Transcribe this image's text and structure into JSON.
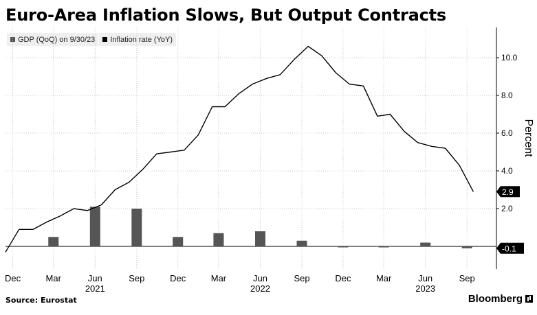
{
  "header": {
    "title": "Euro-Area Inflation Slows, But Output Contracts"
  },
  "legend": {
    "gdp_label": "GDP (QoQ) on 9/30/23",
    "inflation_label": "Inflation rate (YoY)"
  },
  "footer": {
    "source": "Source: Eurostat",
    "brand": "Bloomberg"
  },
  "colors": {
    "gdp": "#555555",
    "inflation": "#000000",
    "grid": "#c8c8c8",
    "legend_bg": "#efefef"
  },
  "chart_data": {
    "type": "bar+line",
    "ylabel": "Percent",
    "ylim": [
      -1.2,
      11.6
    ],
    "y_ticks": [
      {
        "value": 2,
        "label": "2.0"
      },
      {
        "value": 4,
        "label": "4.0"
      },
      {
        "value": 6,
        "label": "6.0"
      },
      {
        "value": 8,
        "label": "8.0"
      },
      {
        "value": 10,
        "label": "10.0"
      }
    ],
    "xlim": [
      "2020-11-15",
      "2023-11-05"
    ],
    "x_ticks": [
      {
        "date": "2020-12-01",
        "label": "Dec"
      },
      {
        "date": "2021-03-01",
        "label": "Mar"
      },
      {
        "date": "2021-06-01",
        "label": "Jun"
      },
      {
        "date": "2021-09-01",
        "label": "Sep"
      },
      {
        "date": "2021-12-01",
        "label": "Dec"
      },
      {
        "date": "2022-03-01",
        "label": "Mar"
      },
      {
        "date": "2022-06-01",
        "label": "Jun"
      },
      {
        "date": "2022-09-01",
        "label": "Sep"
      },
      {
        "date": "2022-12-01",
        "label": "Dec"
      },
      {
        "date": "2023-03-01",
        "label": "Mar"
      },
      {
        "date": "2023-06-01",
        "label": "Jun"
      },
      {
        "date": "2023-09-01",
        "label": "Sep"
      }
    ],
    "year_labels": [
      {
        "date": "2021-06-01",
        "label": "2021"
      },
      {
        "date": "2022-06-01",
        "label": "2022"
      },
      {
        "date": "2023-06-01",
        "label": "2023"
      }
    ],
    "series": [
      {
        "name": "GDP (QoQ) on 9/30/23",
        "kind": "bar",
        "points": [
          {
            "x": "2021-03-01",
            "y": 0.5
          },
          {
            "x": "2021-06-01",
            "y": 2.1
          },
          {
            "x": "2021-09-01",
            "y": 2.0
          },
          {
            "x": "2021-12-01",
            "y": 0.5
          },
          {
            "x": "2022-03-01",
            "y": 0.7
          },
          {
            "x": "2022-06-01",
            "y": 0.8
          },
          {
            "x": "2022-09-01",
            "y": 0.3
          },
          {
            "x": "2022-12-01",
            "y": -0.05
          },
          {
            "x": "2023-03-01",
            "y": -0.05
          },
          {
            "x": "2023-06-01",
            "y": 0.2
          },
          {
            "x": "2023-09-01",
            "y": -0.1
          }
        ]
      },
      {
        "name": "Inflation rate (YoY)",
        "kind": "line",
        "points": [
          {
            "x": "2020-11-15",
            "y": -0.3
          },
          {
            "x": "2020-12-15",
            "y": 0.9
          },
          {
            "x": "2021-01-15",
            "y": 0.9
          },
          {
            "x": "2021-02-15",
            "y": 1.3
          },
          {
            "x": "2021-03-15",
            "y": 1.6
          },
          {
            "x": "2021-04-15",
            "y": 2.0
          },
          {
            "x": "2021-05-15",
            "y": 1.9
          },
          {
            "x": "2021-06-15",
            "y": 2.2
          },
          {
            "x": "2021-07-15",
            "y": 3.0
          },
          {
            "x": "2021-08-15",
            "y": 3.4
          },
          {
            "x": "2021-09-15",
            "y": 4.1
          },
          {
            "x": "2021-10-15",
            "y": 4.9
          },
          {
            "x": "2021-11-15",
            "y": 5.0
          },
          {
            "x": "2021-12-15",
            "y": 5.1
          },
          {
            "x": "2022-01-15",
            "y": 5.9
          },
          {
            "x": "2022-02-15",
            "y": 7.4
          },
          {
            "x": "2022-03-15",
            "y": 7.4
          },
          {
            "x": "2022-04-15",
            "y": 8.1
          },
          {
            "x": "2022-05-15",
            "y": 8.6
          },
          {
            "x": "2022-06-15",
            "y": 8.9
          },
          {
            "x": "2022-07-15",
            "y": 9.1
          },
          {
            "x": "2022-08-15",
            "y": 9.9
          },
          {
            "x": "2022-09-15",
            "y": 10.6
          },
          {
            "x": "2022-10-15",
            "y": 10.1
          },
          {
            "x": "2022-11-15",
            "y": 9.2
          },
          {
            "x": "2022-12-15",
            "y": 8.6
          },
          {
            "x": "2023-01-15",
            "y": 8.5
          },
          {
            "x": "2023-02-15",
            "y": 6.9
          },
          {
            "x": "2023-03-15",
            "y": 7.0
          },
          {
            "x": "2023-04-15",
            "y": 6.1
          },
          {
            "x": "2023-05-15",
            "y": 5.5
          },
          {
            "x": "2023-06-15",
            "y": 5.3
          },
          {
            "x": "2023-07-15",
            "y": 5.2
          },
          {
            "x": "2023-08-15",
            "y": 4.3
          },
          {
            "x": "2023-09-15",
            "y": 2.9
          }
        ]
      }
    ],
    "end_labels": [
      {
        "series": "Inflation rate (YoY)",
        "value": 2.9,
        "label": "2.9"
      },
      {
        "series": "GDP (QoQ) on 9/30/23",
        "value": -0.1,
        "label": "-0.1"
      }
    ]
  }
}
